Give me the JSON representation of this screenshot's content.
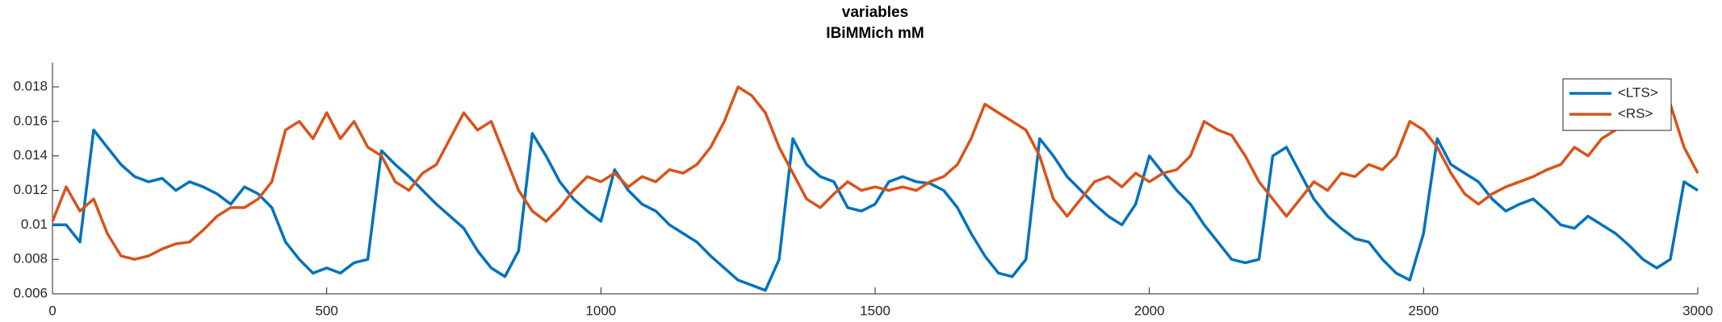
{
  "chart_data": {
    "type": "line",
    "title": "variables",
    "subtitle": "IBiMMich mM",
    "x": [
      0,
      25,
      50,
      75,
      100,
      125,
      150,
      175,
      200,
      225,
      250,
      275,
      300,
      325,
      350,
      375,
      400,
      425,
      450,
      475,
      500,
      525,
      550,
      575,
      600,
      625,
      650,
      675,
      700,
      725,
      750,
      775,
      800,
      825,
      850,
      875,
      900,
      925,
      950,
      975,
      1000,
      1025,
      1050,
      1075,
      1100,
      1125,
      1150,
      1175,
      1200,
      1225,
      1250,
      1275,
      1300,
      1325,
      1350,
      1375,
      1400,
      1425,
      1450,
      1475,
      1500,
      1525,
      1550,
      1575,
      1600,
      1625,
      1650,
      1675,
      1700,
      1725,
      1750,
      1775,
      1800,
      1825,
      1850,
      1875,
      1900,
      1925,
      1950,
      1975,
      2000,
      2025,
      2050,
      2075,
      2100,
      2125,
      2150,
      2175,
      2200,
      2225,
      2250,
      2275,
      2300,
      2325,
      2350,
      2375,
      2400,
      2425,
      2450,
      2475,
      2500,
      2525,
      2550,
      2575,
      2600,
      2625,
      2650,
      2675,
      2700,
      2725,
      2750,
      2775,
      2800,
      2825,
      2850,
      2875,
      2900,
      2925,
      2950,
      2975,
      3000
    ],
    "series": [
      {
        "name": "<LTS>",
        "color": "#0072bd",
        "values": [
          0.01,
          0.01,
          0.009,
          0.0155,
          0.0145,
          0.0135,
          0.0128,
          0.0125,
          0.0127,
          0.012,
          0.0125,
          0.0122,
          0.0118,
          0.0112,
          0.0122,
          0.0118,
          0.011,
          0.009,
          0.008,
          0.0072,
          0.0075,
          0.0072,
          0.0078,
          0.008,
          0.0143,
          0.0135,
          0.0128,
          0.012,
          0.0112,
          0.0105,
          0.0098,
          0.0085,
          0.0075,
          0.007,
          0.0085,
          0.0153,
          0.014,
          0.0125,
          0.0115,
          0.0108,
          0.0102,
          0.0132,
          0.012,
          0.0112,
          0.0108,
          0.01,
          0.0095,
          0.009,
          0.0082,
          0.0075,
          0.0068,
          0.0065,
          0.0062,
          0.008,
          0.015,
          0.0135,
          0.0128,
          0.0125,
          0.011,
          0.0108,
          0.0112,
          0.0125,
          0.0128,
          0.0125,
          0.0124,
          0.012,
          0.011,
          0.0095,
          0.0082,
          0.0072,
          0.007,
          0.008,
          0.015,
          0.014,
          0.0128,
          0.012,
          0.0112,
          0.0105,
          0.01,
          0.0112,
          0.014,
          0.013,
          0.012,
          0.0112,
          0.01,
          0.009,
          0.008,
          0.0078,
          0.008,
          0.014,
          0.0145,
          0.013,
          0.0115,
          0.0105,
          0.0098,
          0.0092,
          0.009,
          0.008,
          0.0072,
          0.0068,
          0.0095,
          0.015,
          0.0135,
          0.013,
          0.0125,
          0.0115,
          0.0108,
          0.0112,
          0.0115,
          0.0108,
          0.01,
          0.0098,
          0.0105,
          0.01,
          0.0095,
          0.0088,
          0.008,
          0.0075,
          0.008,
          0.0125,
          0.012
        ]
      },
      {
        "name": "<RS>",
        "color": "#d95319",
        "values": [
          0.0102,
          0.0122,
          0.0108,
          0.0115,
          0.0095,
          0.0082,
          0.008,
          0.0082,
          0.0086,
          0.0089,
          0.009,
          0.0097,
          0.0105,
          0.011,
          0.011,
          0.0115,
          0.0125,
          0.0155,
          0.016,
          0.015,
          0.0165,
          0.015,
          0.016,
          0.0145,
          0.014,
          0.0125,
          0.012,
          0.013,
          0.0135,
          0.015,
          0.0165,
          0.0155,
          0.016,
          0.014,
          0.012,
          0.0108,
          0.0102,
          0.011,
          0.012,
          0.0128,
          0.0125,
          0.013,
          0.0122,
          0.0128,
          0.0125,
          0.0132,
          0.013,
          0.0135,
          0.0145,
          0.016,
          0.018,
          0.0175,
          0.0165,
          0.0145,
          0.013,
          0.0115,
          0.011,
          0.0118,
          0.0125,
          0.012,
          0.0122,
          0.012,
          0.0122,
          0.012,
          0.0125,
          0.0128,
          0.0135,
          0.015,
          0.017,
          0.0165,
          0.016,
          0.0155,
          0.014,
          0.0115,
          0.0105,
          0.0115,
          0.0125,
          0.0128,
          0.0122,
          0.013,
          0.0125,
          0.013,
          0.0132,
          0.014,
          0.016,
          0.0155,
          0.0152,
          0.014,
          0.0125,
          0.0115,
          0.0105,
          0.0115,
          0.0125,
          0.012,
          0.013,
          0.0128,
          0.0135,
          0.0132,
          0.014,
          0.016,
          0.0155,
          0.0145,
          0.013,
          0.0118,
          0.0112,
          0.0118,
          0.0122,
          0.0125,
          0.0128,
          0.0132,
          0.0135,
          0.0145,
          0.014,
          0.015,
          0.0155,
          0.016,
          0.0165,
          0.0175,
          0.017,
          0.0145,
          0.013
        ]
      }
    ],
    "xlim": [
      0,
      3000
    ],
    "xticks": [
      0,
      500,
      1000,
      1500,
      2000,
      2500,
      3000
    ],
    "ylim": [
      0.006,
      0.0194
    ],
    "yticks": [
      0.006,
      0.008,
      0.01,
      0.012,
      0.014,
      0.016,
      0.018
    ],
    "legend": "upper-right"
  }
}
